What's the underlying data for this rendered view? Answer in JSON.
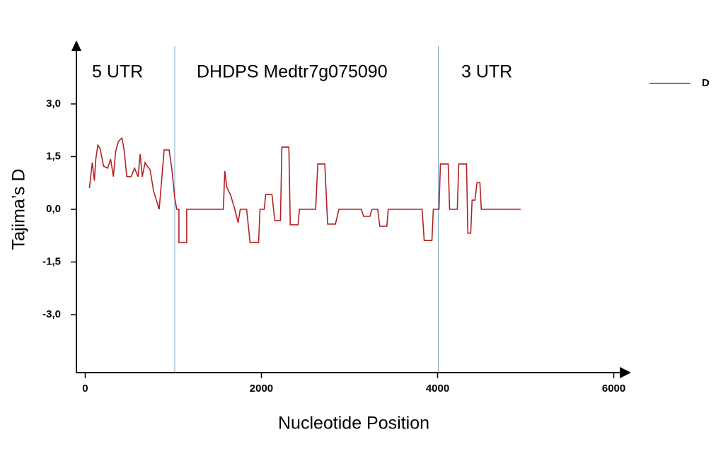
{
  "chart_data": {
    "type": "line",
    "xlabel": "Nucleotide Position",
    "ylabel": "Tajima’s D",
    "regions": [
      "5 UTR",
      "DHDPS Medtr7g075090",
      "3 UTR"
    ],
    "boundaries": [
      1016,
      4008
    ],
    "xlim": [
      -100,
      6100
    ],
    "ylim": [
      -4.65,
      4.55
    ],
    "xticks": [
      0,
      2000,
      4000,
      6000
    ],
    "yticks": [
      {
        "value": 3,
        "label": "3,0"
      },
      {
        "value": 1.5,
        "label": "1,5"
      },
      {
        "value": 0,
        "label": "0,0"
      },
      {
        "value": -1.5,
        "label": "-1,5"
      },
      {
        "value": -3,
        "label": "-3,0"
      }
    ],
    "legend": "right",
    "series": [
      {
        "name": "D",
        "color": "#b22222",
        "x": [
          48,
          80,
          104,
          120,
          144,
          168,
          208,
          256,
          288,
          320,
          344,
          376,
          416,
          440,
          472,
          520,
          560,
          600,
          624,
          648,
          680,
          704,
          736,
          776,
          840,
          864,
          896,
          952,
          984,
          1016,
          1040,
          1064,
          1064,
          1152,
          1152,
          1568,
          1584,
          1608,
          1648,
          1696,
          1736,
          1760,
          1832,
          1872,
          1968,
          1984,
          2032,
          2048,
          2120,
          2152,
          2216,
          2232,
          2312,
          2328,
          2416,
          2432,
          2616,
          2640,
          2720,
          2752,
          2840,
          2880,
          3136,
          3160,
          3232,
          3256,
          3320,
          3344,
          3424,
          3440,
          3824,
          3848,
          3936,
          3952,
          4016,
          4032,
          4120,
          4136,
          4224,
          4240,
          4328,
          4344,
          4376,
          4392,
          4424,
          4448,
          4480,
          4496,
          4944
        ],
        "values": [
          0.6,
          1.33,
          0.82,
          1.43,
          1.83,
          1.73,
          1.23,
          1.17,
          1.43,
          0.93,
          1.63,
          1.93,
          2.03,
          1.73,
          0.93,
          0.93,
          1.17,
          0.93,
          1.57,
          0.93,
          1.33,
          1.23,
          1.13,
          0.52,
          0,
          0.72,
          1.69,
          1.69,
          1.13,
          0.32,
          0,
          0,
          -0.95,
          -0.95,
          0,
          0,
          1.09,
          0.62,
          0.42,
          0.02,
          -0.38,
          0,
          0,
          -0.95,
          -0.95,
          0,
          0,
          0.42,
          0.42,
          -0.32,
          -0.32,
          1.77,
          1.77,
          -0.44,
          -0.44,
          0,
          0,
          1.29,
          1.29,
          -0.42,
          -0.42,
          0,
          0,
          -0.2,
          -0.2,
          0,
          0,
          -0.48,
          -0.48,
          0,
          0,
          -0.89,
          -0.89,
          0,
          0,
          1.29,
          1.29,
          0,
          0,
          1.29,
          1.29,
          -0.68,
          -0.68,
          0.26,
          0.26,
          0.76,
          0.76,
          0,
          0
        ]
      }
    ]
  }
}
